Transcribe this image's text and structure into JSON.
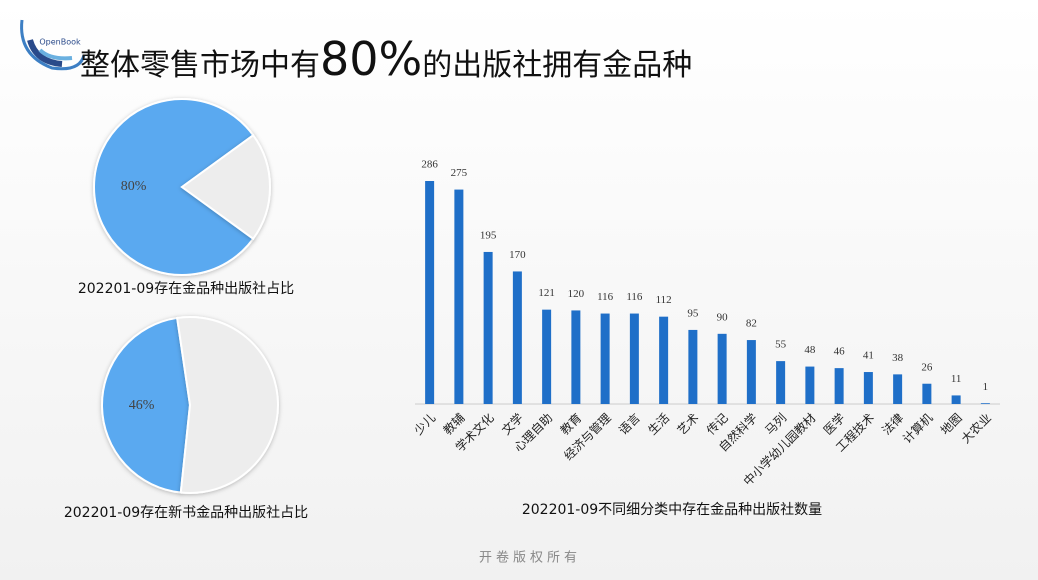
{
  "logo": "OpenBook",
  "title": {
    "before": "整体零售市场中有",
    "highlight": "80%",
    "after": "的出版社拥有金品种"
  },
  "footer": "开卷版权所有",
  "chart_data": [
    {
      "type": "pie",
      "title": "202201-09存在金品种出版社占比",
      "values": [
        80,
        20
      ],
      "value_labels": [
        "80%",
        null
      ],
      "colors": [
        "#5aa9f0",
        "#ededed"
      ]
    },
    {
      "type": "pie",
      "title": "202201-09存在新书金品种出版社占比",
      "values": [
        46,
        54
      ],
      "value_labels": [
        "46%",
        null
      ],
      "colors": [
        "#5aa9f0",
        "#ededed"
      ]
    },
    {
      "type": "bar",
      "title": "202201-09不同细分类中存在金品种出版社数量",
      "color": "#1f6fc8",
      "categories": [
        "少儿",
        "教辅",
        "学术文化",
        "文学",
        "心理自助",
        "教育",
        "经济与管理",
        "语言",
        "生活",
        "艺术",
        "传记",
        "自然科学",
        "马列",
        "中小学幼儿园教材",
        "医学",
        "工程技术",
        "法律",
        "计算机",
        "地图",
        "大农业"
      ],
      "values": [
        286,
        275,
        195,
        170,
        121,
        120,
        116,
        116,
        112,
        95,
        90,
        82,
        55,
        48,
        46,
        41,
        38,
        26,
        11,
        1
      ]
    }
  ]
}
